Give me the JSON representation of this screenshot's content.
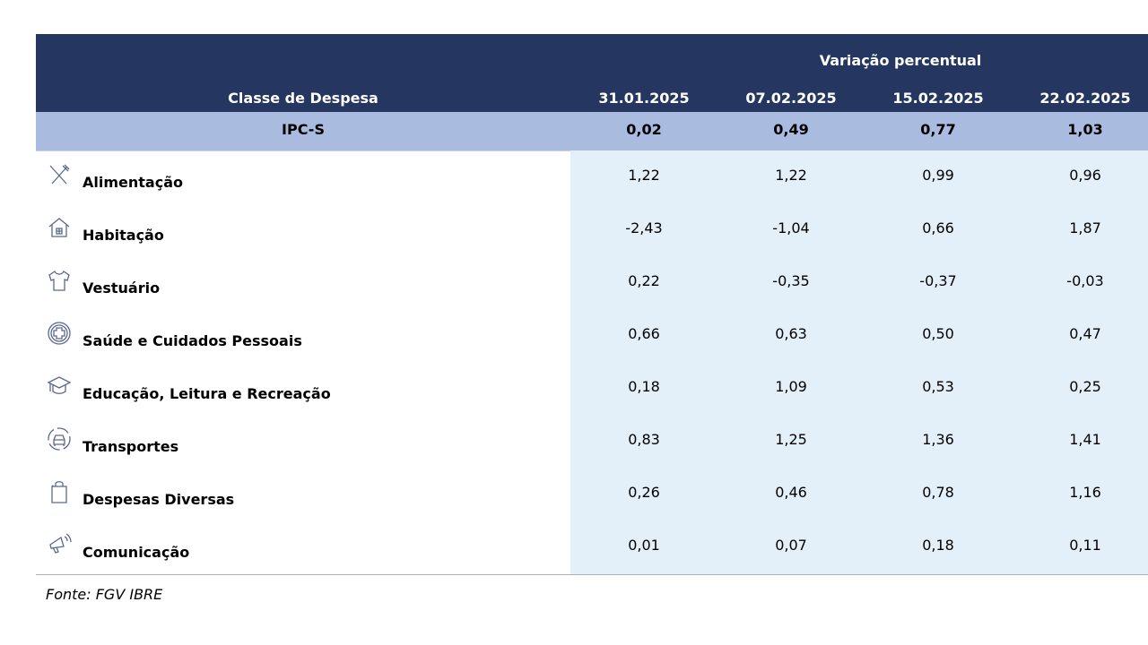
{
  "header": {
    "group": "Variação percentual",
    "class_label": "Classe de Despesa",
    "dates": [
      "31.01.2025",
      "07.02.2025",
      "15.02.2025",
      "22.02.2025"
    ]
  },
  "ipc": {
    "label": "IPC-S",
    "values": [
      "0,02",
      "0,49",
      "0,77",
      "1,03"
    ]
  },
  "rows": [
    {
      "label": "Alimentação",
      "icon": "fork-knife-icon",
      "values": [
        "1,22",
        "1,22",
        "0,99",
        "0,96"
      ]
    },
    {
      "label": "Habitação",
      "icon": "house-icon",
      "values": [
        "-2,43",
        "-1,04",
        "0,66",
        "1,87"
      ]
    },
    {
      "label": "Vestuário",
      "icon": "shirt-icon",
      "values": [
        "0,22",
        "-0,35",
        "-0,37",
        "-0,03"
      ]
    },
    {
      "label": "Saúde e Cuidados Pessoais",
      "icon": "health-cross-icon",
      "values": [
        "0,66",
        "0,63",
        "0,50",
        "0,47"
      ]
    },
    {
      "label": "Educação, Leitura e Recreação",
      "icon": "graduation-cap-icon",
      "values": [
        "0,18",
        "1,09",
        "0,53",
        "0,25"
      ]
    },
    {
      "label": "Transportes",
      "icon": "car-icon",
      "values": [
        "0,83",
        "1,25",
        "1,36",
        "1,41"
      ]
    },
    {
      "label": "Despesas Diversas",
      "icon": "shopping-bag-icon",
      "values": [
        "0,26",
        "0,46",
        "0,78",
        "1,16"
      ]
    },
    {
      "label": "Comunicação",
      "icon": "megaphone-icon",
      "values": [
        "0,01",
        "0,07",
        "0,18",
        "0,11"
      ]
    }
  ],
  "source": "Fonte: FGV IBRE",
  "colors": {
    "header": "#253760",
    "ipc_row": "#aabbe0",
    "values_bg": "#e3f0fa",
    "icon": "#5a6790"
  }
}
